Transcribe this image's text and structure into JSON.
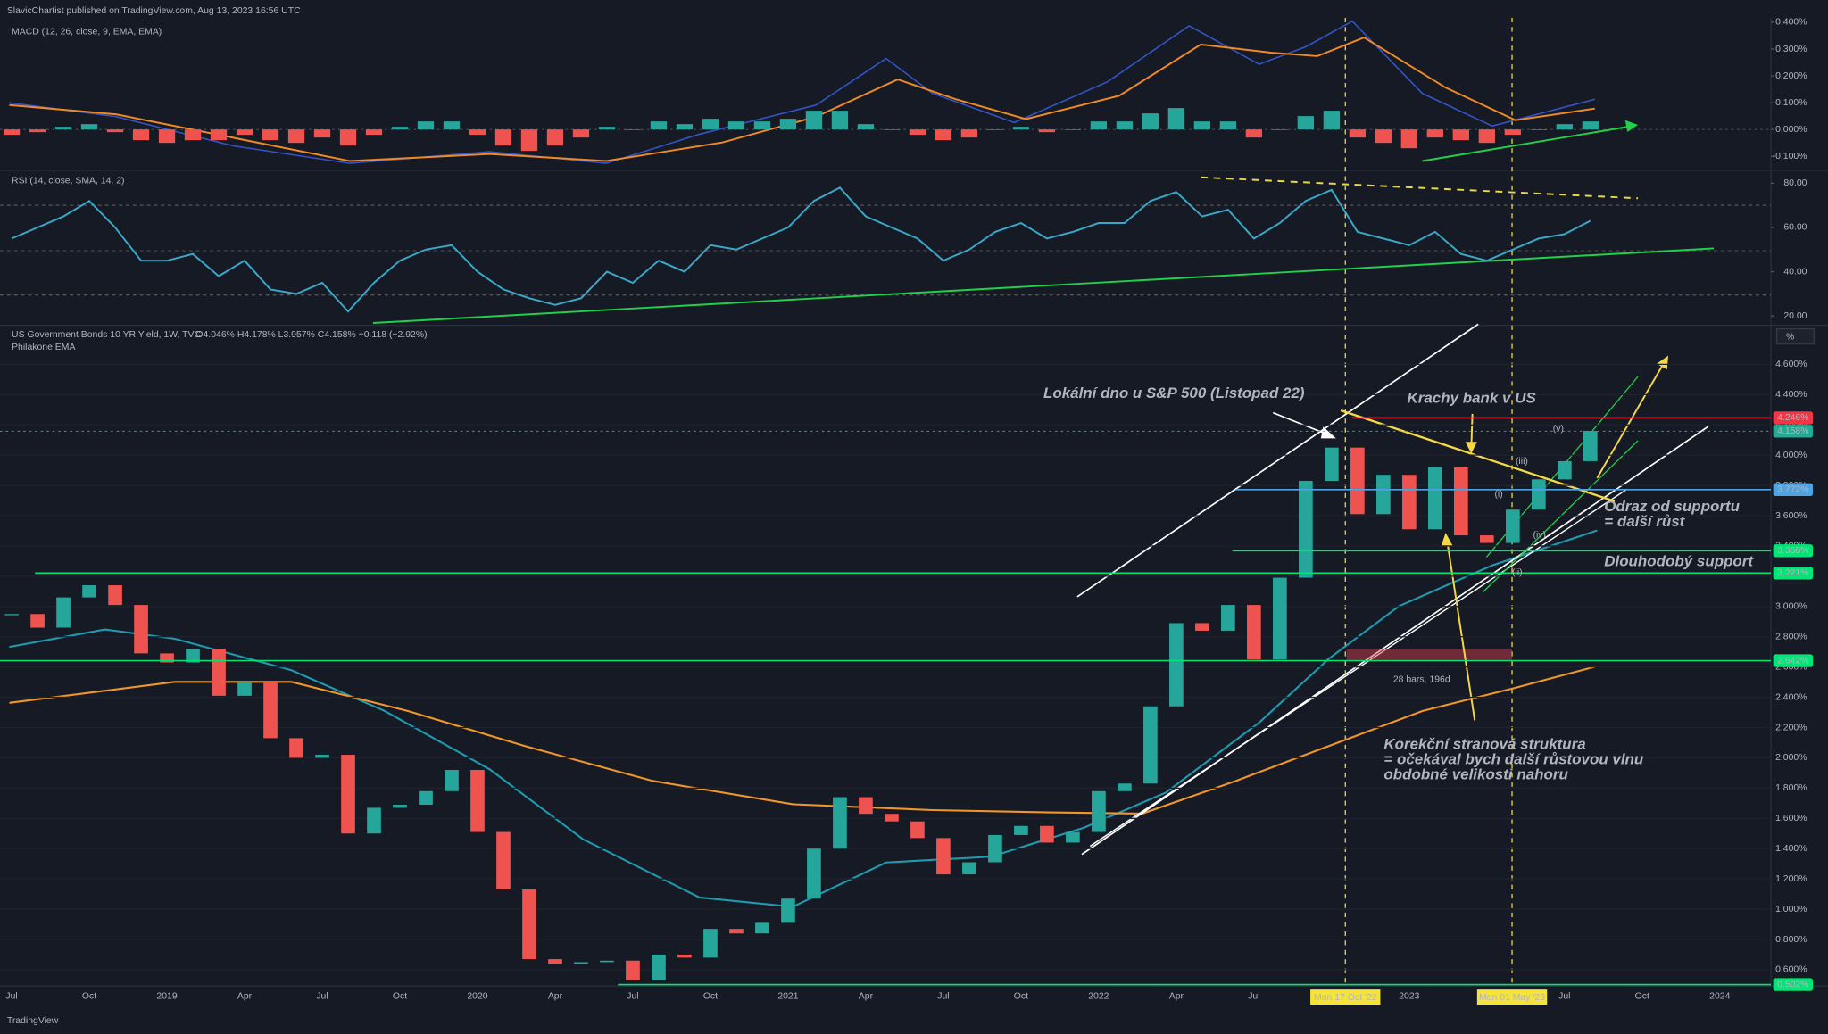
{
  "header": "SlavicChartist published on TradingView.com, Aug 13, 2023 16:56 UTC",
  "footer": "TradingView",
  "time_axis": {
    "labels": [
      "Jul",
      "Oct",
      "2019",
      "Apr",
      "Jul",
      "Oct",
      "2020",
      "Apr",
      "Jul",
      "Oct",
      "2021",
      "Apr",
      "Jul",
      "Oct",
      "2022",
      "Apr",
      "Jul",
      null,
      "2023",
      null,
      "Jul",
      "Oct",
      "2024"
    ],
    "cursor_labels": [
      "Mon 17 Oct '22",
      "Mon 01 May '23"
    ]
  },
  "chart_data": [
    {
      "type": "bar",
      "title": "MACD (12, 26, close, 9, EMA, EMA)",
      "values": [
        -0.02,
        -0.01,
        0.01,
        0.02,
        -0.01,
        -0.04,
        -0.05,
        -0.04,
        -0.04,
        -0.02,
        -0.04,
        -0.05,
        -0.03,
        -0.06,
        -0.02,
        0.01,
        0.03,
        0.03,
        -0.02,
        -0.06,
        -0.08,
        -0.06,
        -0.03,
        0.01,
        0.0,
        0.03,
        0.02,
        0.04,
        0.03,
        0.03,
        0.04,
        0.07,
        0.07,
        0.02,
        0.0,
        -0.02,
        -0.04,
        -0.03,
        0.0,
        0.01,
        -0.01,
        0.0,
        0.03,
        0.03,
        0.06,
        0.08,
        0.03,
        0.03,
        -0.03,
        0.0,
        0.05,
        0.07,
        -0.03,
        -0.05,
        -0.07,
        -0.03,
        -0.04,
        -0.05,
        -0.02,
        0.0,
        0.02,
        0.03
      ],
      "up_color": "#26a69a",
      "down_color": "#ef5350",
      "ylim": [
        -0.148,
        0.417
      ],
      "yticks": [
        {
          "value": 0.4,
          "label": "0.400%"
        },
        {
          "value": 0.3,
          "label": "0.300%"
        },
        {
          "value": 0.2,
          "label": "0.200%"
        },
        {
          "value": 0.1,
          "label": "0.100%"
        },
        {
          "value": 0,
          "label": "0.000%"
        },
        {
          "value": -0.1,
          "label": "-0.100%"
        }
      ]
    },
    {
      "type": "line",
      "title": "RSI (14, close, SMA, 14, 2)",
      "values": [
        55,
        60,
        65,
        72,
        60,
        45,
        45,
        48,
        38,
        45,
        32,
        30,
        35,
        22,
        35,
        45,
        50,
        52,
        40,
        32,
        28,
        25,
        28,
        40,
        35,
        45,
        40,
        52,
        50,
        55,
        60,
        72,
        78,
        65,
        60,
        55,
        45,
        50,
        58,
        62,
        55,
        58,
        62,
        62,
        72,
        76,
        65,
        68,
        55,
        62,
        72,
        77,
        58,
        55,
        52,
        58,
        48,
        45,
        50,
        55,
        57,
        63
      ],
      "color": "#3aa9c9",
      "ylim": [
        16.3,
        85.3
      ],
      "yticks": [
        {
          "value": 80,
          "label": "80.00"
        },
        {
          "value": 60,
          "label": "60.00"
        },
        {
          "value": 40,
          "label": "40.00"
        },
        {
          "value": 20,
          "label": "20.00"
        }
      ]
    },
    {
      "type": "candle",
      "title": "US Government Bonds 10 YR Yield, 1W, TVC",
      "ohlc": "O4.046% H4.178% L3.957% C4.158% +0.118 (+2.92%)",
      "subtitle": "Philakone EMA",
      "unit_label": "%",
      "values": [
        2.95,
        2.86,
        3.06,
        3.14,
        3.01,
        2.69,
        2.63,
        2.72,
        2.41,
        2.5,
        2.13,
        2.0,
        2.02,
        1.5,
        1.67,
        1.69,
        1.78,
        1.92,
        1.51,
        1.13,
        0.67,
        0.64,
        0.65,
        0.66,
        0.53,
        0.7,
        0.68,
        0.87,
        0.84,
        0.91,
        1.07,
        1.4,
        1.74,
        1.63,
        1.58,
        1.47,
        1.23,
        1.31,
        1.49,
        1.55,
        1.44,
        1.51,
        1.78,
        1.83,
        2.34,
        2.89,
        2.84,
        3.01,
        2.65,
        3.19,
        3.83,
        4.05,
        3.61,
        3.87,
        3.51,
        3.92,
        3.47,
        3.42,
        3.64,
        3.84,
        3.96,
        4.16
      ],
      "up_color": "#26a69a",
      "down_color": "#ef5350",
      "grid": true,
      "ylim": [
        0.5,
        4.85
      ],
      "yticks": [
        {
          "value": 4.6,
          "label": "4.600%"
        },
        {
          "value": 4.4,
          "label": "4.400%"
        },
        {
          "value": 4.2,
          "label": "4.200%"
        },
        {
          "value": 4.0,
          "label": "4.000%"
        },
        {
          "value": 3.8,
          "label": "3.800%"
        },
        {
          "value": 3.6,
          "label": "3.600%"
        },
        {
          "value": 3.4,
          "label": "3.400%"
        },
        {
          "value": 3.2,
          "label": "3.200%"
        },
        {
          "value": 3.0,
          "label": "3.000%"
        },
        {
          "value": 2.8,
          "label": "2.800%"
        },
        {
          "value": 2.6,
          "label": "2.600%"
        },
        {
          "value": 2.4,
          "label": "2.400%"
        },
        {
          "value": 2.2,
          "label": "2.200%"
        },
        {
          "value": 2.0,
          "label": "2.000%"
        },
        {
          "value": 1.8,
          "label": "1.800%"
        },
        {
          "value": 1.6,
          "label": "1.600%"
        },
        {
          "value": 1.4,
          "label": "1.400%"
        },
        {
          "value": 1.2,
          "label": "1.200%"
        },
        {
          "value": 1.0,
          "label": "1.000%"
        },
        {
          "value": 0.8,
          "label": "0.800%"
        },
        {
          "value": 0.6,
          "label": "0.600%"
        }
      ],
      "levels": [
        {
          "value": 4.246,
          "label": "4.246%",
          "color": "#f23645"
        },
        {
          "value": 4.158,
          "label": "4.158%",
          "color": "#22ab94"
        },
        {
          "value": 3.772,
          "label": "3.772%",
          "color": "#4fa3e0"
        },
        {
          "value": 3.368,
          "label": "3.368%",
          "color": "#00e676"
        },
        {
          "value": 3.221,
          "label": "3.221%",
          "color": "#00e676"
        },
        {
          "value": 2.642,
          "label": "2.642%",
          "color": "#00e676"
        },
        {
          "value": 0.502,
          "label": "0.502%",
          "color": "#00e676"
        }
      ]
    }
  ],
  "annotations": [
    {
      "text": "Lokální dno u S&P 500 (Listopad 22)",
      "color": "#ffffff"
    },
    {
      "text": "Krachy bank v US",
      "color": "#f5d848"
    },
    {
      "text": "(v)",
      "color": "#ffffff"
    },
    {
      "text": "(iii)",
      "color": "#ffffff"
    },
    {
      "text": "(i)",
      "color": "#ffffff"
    },
    {
      "text": "(iv)",
      "color": "#ffffff"
    },
    {
      "text": "(ii)",
      "color": "#ffffff"
    },
    {
      "text": "Odraz od supportu",
      "color": "#3ec8e8"
    },
    {
      "text": "= další růst",
      "color": "#3ec8e8"
    },
    {
      "text": "Dlouhodobý support",
      "color": "#22d04a"
    },
    {
      "text": "28 bars, 196d",
      "color": "#e04050"
    },
    {
      "text": "Korekční stranová struktura",
      "color": "#f5d848"
    },
    {
      "text": "= očekával bych další růstovou vlnu",
      "color": "#f5d848"
    },
    {
      "text": "obdobné velikosti nahoru",
      "color": "#f5d848"
    }
  ]
}
